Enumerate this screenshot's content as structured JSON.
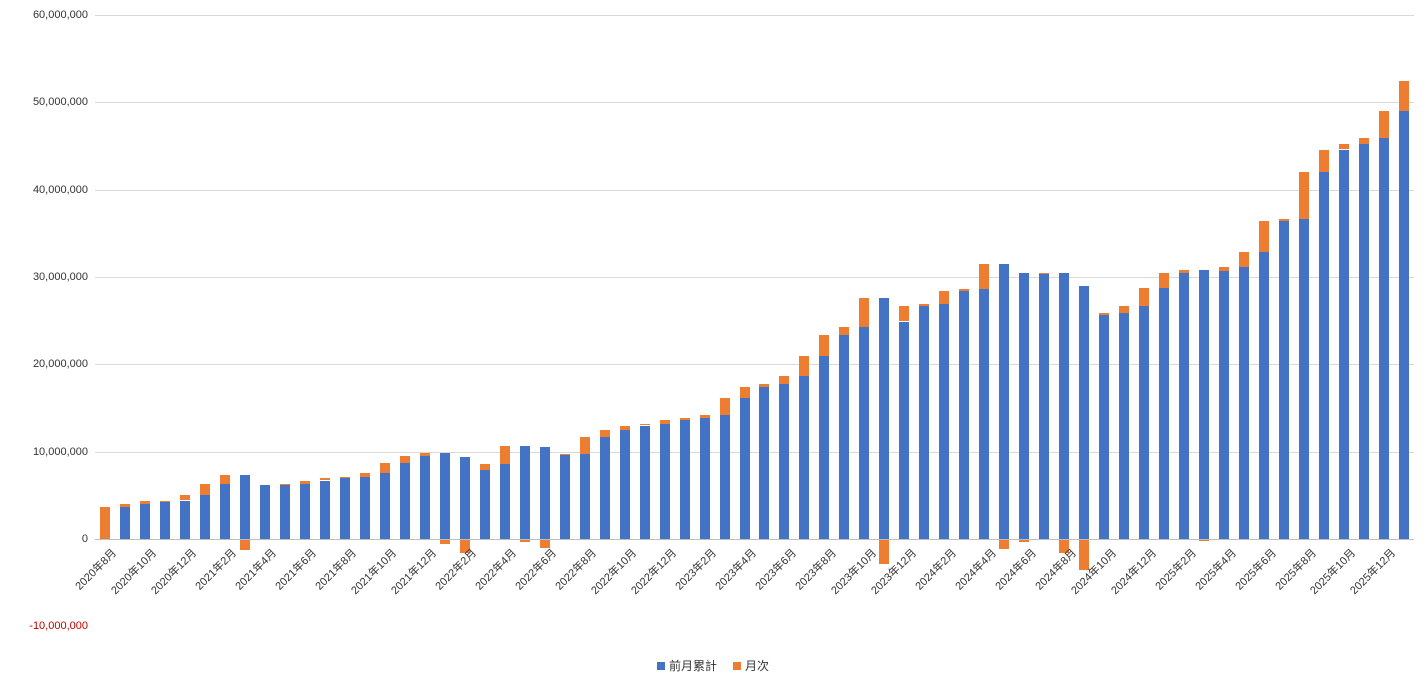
{
  "chart_data": {
    "type": "bar",
    "stacked": true,
    "title": "",
    "legend_position": "bottom",
    "grid": true,
    "x_label_interval": 2,
    "categories": [
      "2020年8月",
      "2020年9月",
      "2020年10月",
      "2020年11月",
      "2020年12月",
      "2021年1月",
      "2021年2月",
      "2021年3月",
      "2021年4月",
      "2021年5月",
      "2021年6月",
      "2021年7月",
      "2021年8月",
      "2021年9月",
      "2021年10月",
      "2021年11月",
      "2021年12月",
      "2022年1月",
      "2022年2月",
      "2022年3月",
      "2022年4月",
      "2022年5月",
      "2022年6月",
      "2022年7月",
      "2022年8月",
      "2022年9月",
      "2022年10月",
      "2022年11月",
      "2022年12月",
      "2023年1月",
      "2023年2月",
      "2023年3月",
      "2023年4月",
      "2023年5月",
      "2023年6月",
      "2023年7月",
      "2023年8月",
      "2023年9月",
      "2023年10月",
      "2023年11月",
      "2023年12月",
      "2024年1月",
      "2024年2月",
      "2024年3月",
      "2024年4月",
      "2024年5月",
      "2024年6月",
      "2024年7月",
      "2024年8月",
      "2024年9月",
      "2024年10月",
      "2024年11月",
      "2024年12月",
      "2025年1月",
      "2025年2月",
      "2025年3月",
      "2025年4月",
      "2025年5月",
      "2025年6月",
      "2025年7月",
      "2025年8月",
      "2025年9月",
      "2025年10月",
      "2025年11月",
      "2025年12月",
      "2026年1月"
    ],
    "series": [
      {
        "name": "前月累計",
        "color": "#4472C4",
        "values": [
          0,
          3700000,
          4000000,
          4300000,
          4400000,
          5000000,
          6300000,
          7300000,
          6200000,
          6200000,
          6300000,
          6700000,
          7000000,
          7100000,
          7600000,
          8700000,
          9500000,
          9900000,
          9400000,
          7900000,
          8600000,
          10700000,
          10500000,
          9600000,
          9700000,
          11700000,
          12500000,
          13000000,
          13200000,
          13600000,
          13900000,
          14200000,
          16200000,
          17400000,
          17700000,
          18700000,
          21000000,
          23400000,
          24300000,
          27600000,
          24900000,
          26700000,
          26900000,
          28400000,
          28600000,
          31500000,
          30500000,
          30300000,
          30500000,
          29000000,
          25600000,
          25900000,
          26700000,
          28700000,
          30500000,
          30800000,
          30700000,
          31100000,
          32900000,
          36400000,
          36600000,
          42000000,
          44600000,
          45200000,
          45900000,
          49000000
        ]
      },
      {
        "name": "月次",
        "color": "#ED7D31",
        "values": [
          3700000,
          300000,
          300000,
          100000,
          600000,
          1300000,
          1000000,
          -1100000,
          0,
          100000,
          400000,
          300000,
          100000,
          500000,
          1100000,
          800000,
          400000,
          -500000,
          -1500000,
          700000,
          2100000,
          -200000,
          -900000,
          100000,
          2000000,
          800000,
          500000,
          200000,
          400000,
          300000,
          300000,
          2000000,
          1200000,
          300000,
          1000000,
          2300000,
          2400000,
          900000,
          3300000,
          -2700000,
          1800000,
          200000,
          1500000,
          200000,
          2900000,
          -1000000,
          -200000,
          200000,
          -1500000,
          -3400000,
          300000,
          800000,
          2000000,
          1800000,
          300000,
          -100000,
          400000,
          1800000,
          3500000,
          200000,
          5400000,
          2600000,
          600000,
          700000,
          3100000,
          3500000
        ]
      }
    ],
    "y_axis": {
      "min": -10000000,
      "max": 60000000,
      "ticks": [
        {
          "value": 60000000,
          "label": "60,000,000"
        },
        {
          "value": 50000000,
          "label": "50,000,000"
        },
        {
          "value": 40000000,
          "label": "40,000,000"
        },
        {
          "value": 30000000,
          "label": "30,000,000"
        },
        {
          "value": 20000000,
          "label": "20,000,000"
        },
        {
          "value": 10000000,
          "label": "10,000,000"
        },
        {
          "value": 0,
          "label": "0"
        },
        {
          "value": -10000000,
          "label": "-10,000,000"
        }
      ]
    },
    "colors": {
      "gridline": "#D9D9D9",
      "axis_line": "#BFBFBF",
      "tick_text": "#333333",
      "negative_tick_text": "#C00000",
      "background": "#FFFFFF"
    }
  }
}
